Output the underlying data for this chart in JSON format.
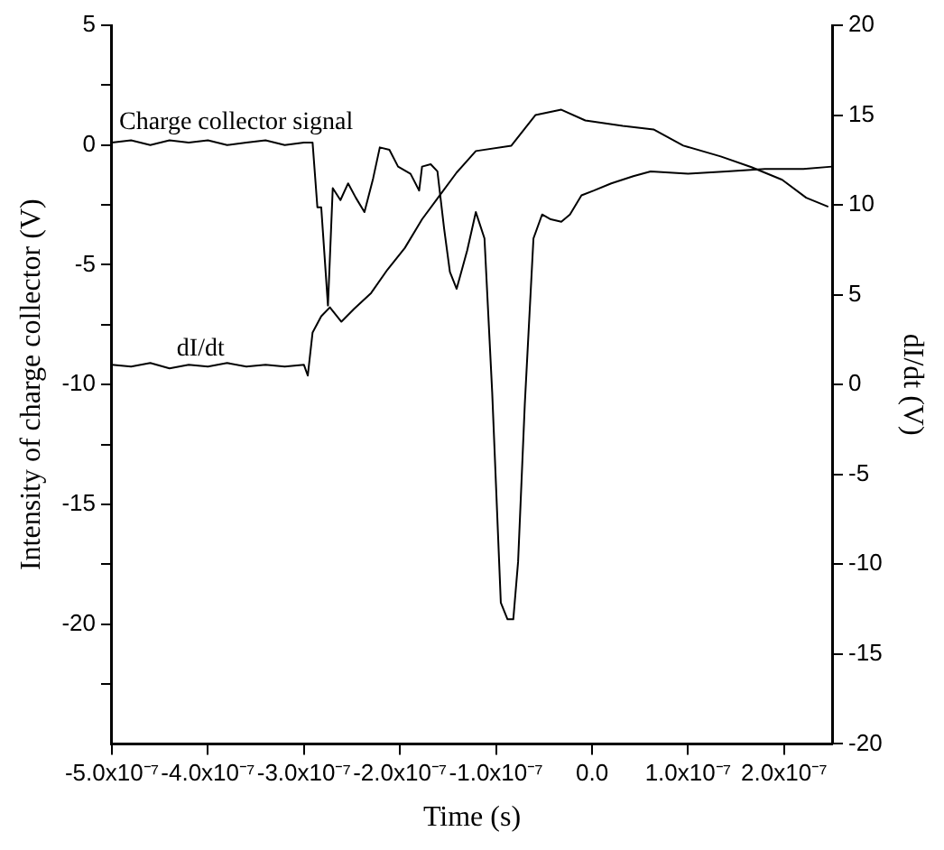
{
  "chart_data": {
    "type": "line",
    "xlabel": "Time (s)",
    "ylabel": "Intensity of charge collector (V)",
    "y2label": "dI/dt (V)",
    "xlim": [
      -5e-07,
      2.5e-07
    ],
    "xticks": [
      {
        "value": -5e-07,
        "label": "-5.0x10⁻⁷"
      },
      {
        "value": -4e-07,
        "label": "-4.0x10⁻⁷"
      },
      {
        "value": -3e-07,
        "label": "-3.0x10⁻⁷"
      },
      {
        "value": -2e-07,
        "label": "-2.0x10⁻⁷"
      },
      {
        "value": -1e-07,
        "label": "-1.0x10⁻⁷"
      },
      {
        "value": 0,
        "label": "0.0"
      },
      {
        "value": 1e-07,
        "label": "1.0x10⁻⁷"
      },
      {
        "value": 2e-07,
        "label": "2.0x10⁻⁷"
      }
    ],
    "ylim": [
      -25,
      5
    ],
    "yticks": [
      5,
      {
        "value": 2.5,
        "label": null
      },
      0,
      {
        "value": -2.5,
        "label": null
      },
      -5,
      {
        "value": -7.5,
        "label": null
      },
      -10,
      {
        "value": -12.5,
        "label": null
      },
      -15,
      {
        "value": -17.5,
        "label": null
      },
      -20,
      {
        "value": -22.5,
        "label": null
      }
    ],
    "y2lim": [
      -20,
      20
    ],
    "y2ticks": [
      -20,
      -15,
      -10,
      -5,
      0,
      5,
      10,
      15,
      20
    ],
    "grid": false,
    "legend": false,
    "marker": "none",
    "line_style": "solid",
    "series": [
      {
        "name": "Charge collector signal",
        "color": "#000000",
        "axis": "y",
        "x": [
          -5e-07,
          -4.8e-07,
          -4.6e-07,
          -4.4e-07,
          -4.2e-07,
          -4e-07,
          -3.8e-07,
          -3.6e-07,
          -3.4e-07,
          -3.2e-07,
          -3e-07,
          -2.91e-07,
          -2.86e-07,
          -2.82e-07,
          -2.75e-07,
          -2.7e-07,
          -2.62e-07,
          -2.54e-07,
          -2.46e-07,
          -2.37e-07,
          -2.28e-07,
          -2.21e-07,
          -2.11e-07,
          -2.02e-07,
          -1.89e-07,
          -1.8e-07,
          -1.77e-07,
          -1.68e-07,
          -1.61e-07,
          -1.54e-07,
          -1.48e-07,
          -1.41e-07,
          -1.3e-07,
          -1.21e-07,
          -1.12e-07,
          -1.04e-07,
          -9.5e-08,
          -8.8e-08,
          -8.2e-08,
          -7.7e-08,
          -7e-08,
          -6.1e-08,
          -5.2e-08,
          -4.3e-08,
          -3.2e-08,
          -2.3e-08,
          -1.1e-08,
          2e-09,
          2e-08,
          4.3e-08,
          6.1e-08,
          1e-07,
          1.4e-07,
          1.8e-07,
          2.2e-07,
          2.5e-07
        ],
        "values": [
          0.1,
          0.2,
          0.0,
          0.2,
          0.1,
          0.2,
          0.0,
          0.1,
          0.2,
          0.0,
          0.1,
          0.1,
          -2.6,
          -2.6,
          -6.7,
          -1.8,
          -2.3,
          -1.6,
          -2.2,
          -2.8,
          -1.4,
          -0.1,
          -0.2,
          -0.9,
          -1.2,
          -1.9,
          -0.9,
          -0.8,
          -1.1,
          -3.5,
          -5.3,
          -6.0,
          -4.4,
          -2.8,
          -3.9,
          -10.3,
          -19.1,
          -19.8,
          -19.8,
          -17.4,
          -10.8,
          -3.9,
          -2.9,
          -3.1,
          -3.2,
          -2.9,
          -2.1,
          -1.9,
          -1.6,
          -1.3,
          -1.1,
          -1.2,
          -1.1,
          -1.0,
          -1.0,
          -0.9
        ]
      },
      {
        "name": "dI/dt",
        "color": "#000000",
        "axis": "y2",
        "x": [
          -5e-07,
          -4.8e-07,
          -4.6e-07,
          -4.4e-07,
          -4.2e-07,
          -4e-07,
          -3.8e-07,
          -3.6e-07,
          -3.4e-07,
          -3.2e-07,
          -3e-07,
          -2.96e-07,
          -2.91e-07,
          -2.82e-07,
          -2.73e-07,
          -2.61e-07,
          -2.48e-07,
          -2.3e-07,
          -2.13e-07,
          -1.95e-07,
          -1.77e-07,
          -1.59e-07,
          -1.41e-07,
          -1.21e-07,
          -8.4e-08,
          -5.9e-08,
          -3.2e-08,
          -7e-09,
          3.2e-08,
          6.4e-08,
          9.5e-08,
          1.34e-07,
          1.66e-07,
          1.98e-07,
          2.23e-07,
          2.46e-07
        ],
        "values": [
          1.1,
          1.0,
          1.2,
          0.9,
          1.1,
          1.0,
          1.2,
          1.0,
          1.1,
          1.0,
          1.1,
          0.5,
          2.9,
          3.8,
          4.3,
          3.5,
          4.2,
          5.1,
          6.4,
          7.6,
          9.2,
          10.5,
          11.8,
          13.0,
          13.3,
          15.0,
          15.3,
          14.7,
          14.4,
          14.2,
          13.3,
          12.7,
          12.1,
          11.4,
          10.4,
          9.9
        ]
      }
    ]
  }
}
